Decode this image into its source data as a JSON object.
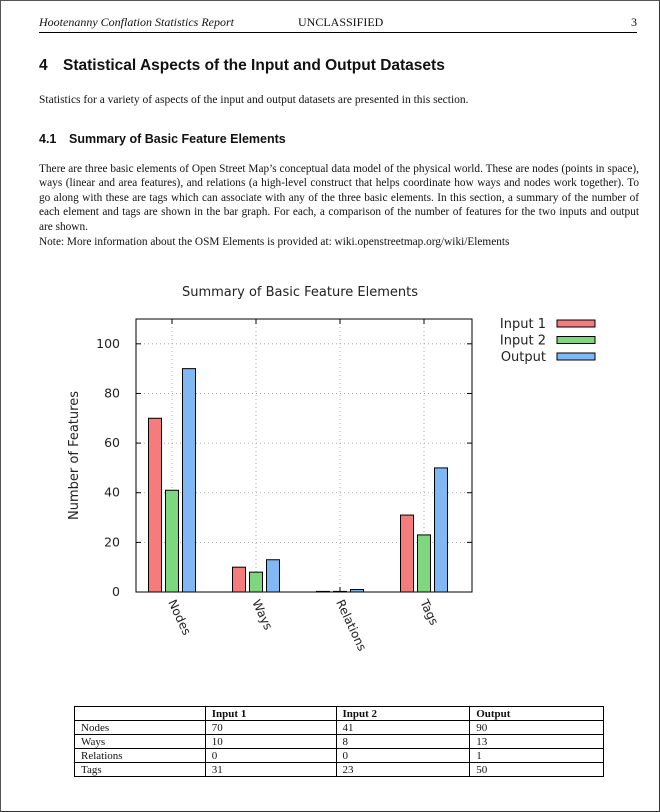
{
  "header": {
    "left": "Hootenanny Conflation Statistics Report",
    "center": "UNCLASSIFIED",
    "page_number": "3"
  },
  "section": {
    "number": "4",
    "title": "Statistical Aspects of the Input and Output Datasets",
    "intro": "Statistics for a variety of aspects of the input and output datasets are presented in this section."
  },
  "subsection": {
    "number": "4.1",
    "title": "Summary of Basic Feature Elements",
    "paragraph": "There are three basic elements of Open Street Map’s conceptual data model of the physical world. These are nodes (points in space), ways (linear and area features), and relations (a high-level construct that helps coordinate how ways and nodes work together). To go along with these are tags which can associate with any of the three basic elements. In this section, a summary of the number of each element and tags are shown in the bar graph. For each, a comparison of the number of features for the two inputs and output are shown.",
    "note": "Note: More information about the OSM Elements is provided at: wiki.openstreetmap.org/wiki/Elements"
  },
  "chart_data": {
    "type": "bar",
    "title": "Summary of Basic Feature Elements",
    "xlabel": "",
    "ylabel": "Number of Features",
    "categories": [
      "Nodes",
      "Ways",
      "Relations",
      "Tags"
    ],
    "series": [
      {
        "name": "Input 1",
        "values": [
          70,
          10,
          0,
          31
        ],
        "color": "#f47c7c"
      },
      {
        "name": "Input 2",
        "values": [
          41,
          8,
          0,
          23
        ],
        "color": "#7ed67e"
      },
      {
        "name": "Output",
        "values": [
          90,
          13,
          1,
          50
        ],
        "color": "#7fb8f5"
      }
    ],
    "ylim": [
      0,
      110
    ],
    "yticks": [
      0,
      20,
      40,
      60,
      80,
      100
    ],
    "grid": true,
    "legend": "outside-top-right"
  },
  "table": {
    "headers": [
      "",
      "Input 1",
      "Input 2",
      "Output"
    ],
    "rows": [
      [
        "Nodes",
        "70",
        "41",
        "90"
      ],
      [
        "Ways",
        "10",
        "8",
        "13"
      ],
      [
        "Relations",
        "0",
        "0",
        "1"
      ],
      [
        "Tags",
        "31",
        "23",
        "50"
      ]
    ]
  }
}
